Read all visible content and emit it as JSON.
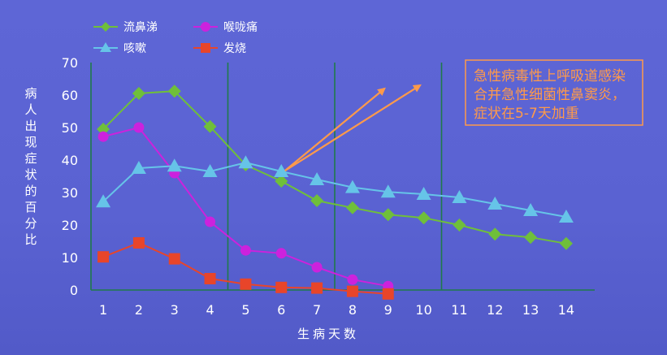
{
  "chart_data": {
    "type": "line",
    "title": "",
    "xlabel": "生病天数",
    "ylabel": "病人出现症状的百分比",
    "x": [
      1,
      2,
      3,
      4,
      5,
      6,
      7,
      8,
      9,
      10,
      11,
      12,
      13,
      14
    ],
    "xlim": [
      0.2,
      14.8
    ],
    "ylim": [
      0,
      70
    ],
    "yticks": [
      0,
      10,
      20,
      30,
      40,
      50,
      60,
      70
    ],
    "grid": "vertical lines after days 4, 7 and 10",
    "legend_position": "top-left",
    "series": [
      {
        "name": "流鼻涕",
        "color": "#6fbf3a",
        "marker": "diamond",
        "x": [
          1,
          2,
          3,
          4,
          5,
          6,
          7,
          8,
          9,
          10,
          11,
          12,
          13,
          14
        ],
        "values": [
          49.5,
          60.5,
          61.2,
          50.3,
          38.5,
          33.5,
          27.5,
          25.3,
          23.2,
          22.2,
          20,
          17.2,
          16.2,
          14.3
        ]
      },
      {
        "name": "喉咙痛",
        "color": "#cc22dd",
        "marker": "circle",
        "x": [
          1,
          2,
          3,
          4,
          5,
          6,
          7,
          8,
          9
        ],
        "values": [
          47.2,
          50,
          36,
          21,
          12.2,
          11.3,
          7,
          3.2,
          1.2
        ]
      },
      {
        "name": "咳嗽",
        "color": "#66c4e8",
        "marker": "triangle",
        "x": [
          1,
          2,
          3,
          4,
          5,
          6,
          7,
          8,
          9,
          10,
          11,
          12,
          13,
          14
        ],
        "values": [
          27.2,
          37.5,
          38.2,
          36.5,
          39.2,
          36.5,
          34,
          31.6,
          30.2,
          29.5,
          28.5,
          26.5,
          24.5,
          22.5
        ]
      },
      {
        "name": "发烧",
        "color": "#e8452a",
        "marker": "square",
        "x": [
          1,
          2,
          3,
          4,
          5,
          6,
          7,
          8,
          9
        ],
        "values": [
          10.2,
          14.5,
          9.6,
          3.5,
          1.8,
          0.8,
          0.6,
          -0.4,
          -1.2
        ]
      }
    ],
    "annotation": {
      "lines": [
        "急性病毒性上呼吸道感染",
        "合并急性细菌性鼻窦炎，",
        "症状在5-7天加重"
      ],
      "color": "#ff9a4a",
      "arrows": [
        {
          "from": [
            6.1,
            36.7
          ],
          "to": [
            8.9,
            62
          ]
        },
        {
          "from": [
            6.1,
            36.7
          ],
          "to": [
            9.9,
            63
          ]
        }
      ]
    }
  }
}
